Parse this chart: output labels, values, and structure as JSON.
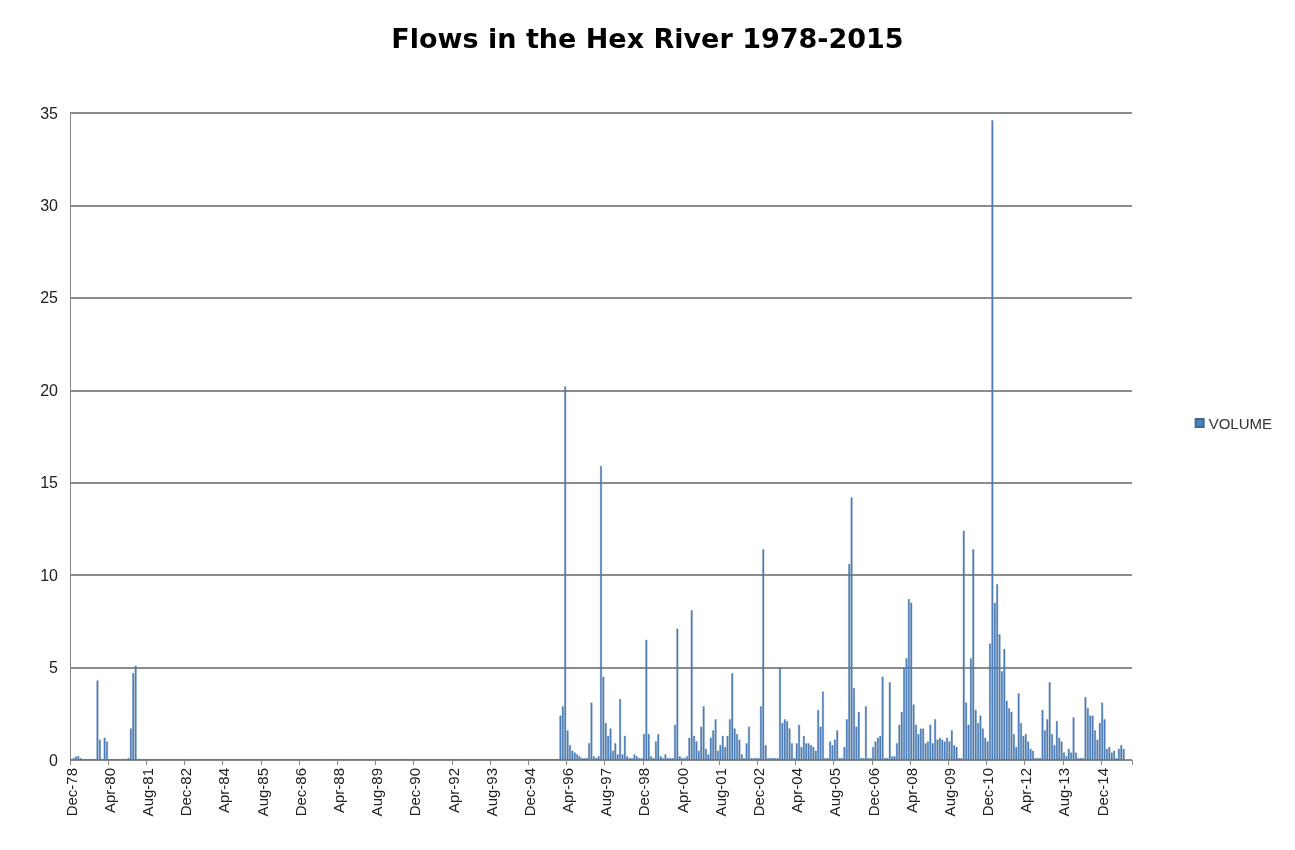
{
  "chart_data": {
    "type": "bar",
    "title": "Flows in the Hex River 1978-2015",
    "categories": [
      "Dec-78",
      null,
      null,
      null,
      null,
      null,
      null,
      null,
      null,
      null,
      null,
      null,
      null,
      null,
      null,
      null,
      "Apr-80",
      null,
      null,
      null,
      null,
      null,
      null,
      null,
      null,
      null,
      null,
      null,
      null,
      null,
      null,
      null,
      "Aug-81",
      null,
      null,
      null,
      null,
      null,
      null,
      null,
      null,
      null,
      null,
      null,
      null,
      null,
      null,
      null,
      "Dec-82",
      null,
      null,
      null,
      null,
      null,
      null,
      null,
      null,
      null,
      null,
      null,
      null,
      null,
      null,
      null,
      "Apr-84",
      null,
      null,
      null,
      null,
      null,
      null,
      null,
      null,
      null,
      null,
      null,
      null,
      null,
      null,
      null,
      "Aug-85",
      null,
      null,
      null,
      null,
      null,
      null,
      null,
      null,
      null,
      null,
      null,
      null,
      null,
      null,
      null,
      "Dec-86",
      null,
      null,
      null,
      null,
      null,
      null,
      null,
      null,
      null,
      null,
      null,
      null,
      null,
      null,
      null,
      "Apr-88",
      null,
      null,
      null,
      null,
      null,
      null,
      null,
      null,
      null,
      null,
      null,
      null,
      null,
      null,
      null,
      "Aug-89",
      null,
      null,
      null,
      null,
      null,
      null,
      null,
      null,
      null,
      null,
      null,
      null,
      null,
      null,
      null,
      "Dec-90",
      null,
      null,
      null,
      null,
      null,
      null,
      null,
      null,
      null,
      null,
      null,
      null,
      null,
      null,
      null,
      "Apr-92",
      null,
      null,
      null,
      null,
      null,
      null,
      null,
      null,
      null,
      null,
      null,
      null,
      null,
      null,
      null,
      "Aug-93",
      null,
      null,
      null,
      null,
      null,
      null,
      null,
      null,
      null,
      null,
      null,
      null,
      null,
      null,
      null,
      "Dec-94",
      null,
      null,
      null,
      null,
      null,
      null,
      null,
      null,
      null,
      null,
      null,
      null,
      null,
      null,
      null,
      "Apr-96",
      null,
      null,
      null,
      null,
      null,
      null,
      null,
      null,
      null,
      null,
      null,
      null,
      null,
      null,
      null,
      "Aug-97",
      null,
      null,
      null,
      null,
      null,
      null,
      null,
      null,
      null,
      null,
      null,
      null,
      null,
      null,
      null,
      "Dec-98",
      null,
      null,
      null,
      null,
      null,
      null,
      null,
      null,
      null,
      null,
      null,
      null,
      null,
      null,
      null,
      "Apr-00",
      null,
      null,
      null,
      null,
      null,
      null,
      null,
      null,
      null,
      null,
      null,
      null,
      null,
      null,
      null,
      "Aug-01",
      null,
      null,
      null,
      null,
      null,
      null,
      null,
      null,
      null,
      null,
      null,
      null,
      null,
      null,
      null,
      "Dec-02",
      null,
      null,
      null,
      null,
      null,
      null,
      null,
      null,
      null,
      null,
      null,
      null,
      null,
      null,
      null,
      "Apr-04",
      null,
      null,
      null,
      null,
      null,
      null,
      null,
      null,
      null,
      null,
      null,
      null,
      null,
      null,
      null,
      "Aug-05",
      null,
      null,
      null,
      null,
      null,
      null,
      null,
      null,
      null,
      null,
      null,
      null,
      null,
      null,
      null,
      "Dec-06",
      null,
      null,
      null,
      null,
      null,
      null,
      null,
      null,
      null,
      null,
      null,
      null,
      null,
      null,
      null,
      "Apr-08",
      null,
      null,
      null,
      null,
      null,
      null,
      null,
      null,
      null,
      null,
      null,
      null,
      null,
      null,
      null,
      "Aug-09",
      null,
      null,
      null,
      null,
      null,
      null,
      null,
      null,
      null,
      null,
      null,
      null,
      null,
      null,
      null,
      "Dec-10",
      null,
      null,
      null,
      null,
      null,
      null,
      null,
      null,
      null,
      null,
      null,
      null,
      null,
      null,
      null,
      "Apr-12",
      null,
      null,
      null,
      null,
      null,
      null,
      null,
      null,
      null,
      null,
      null,
      null,
      null,
      null,
      null,
      "Aug-13",
      null,
      null,
      null,
      null,
      null,
      null,
      null,
      null,
      null,
      null,
      null,
      null,
      null,
      null,
      null,
      "Dec-14",
      null,
      null,
      null,
      null,
      null,
      null,
      null,
      null,
      null,
      null,
      null,
      null
    ],
    "series": [
      {
        "name": "VOLUME",
        "color": "#4f81bd",
        "values": [
          0.05,
          0.1,
          0.2,
          0.2,
          0.1,
          0.05,
          0.05,
          0.05,
          0.05,
          0.05,
          0.05,
          4.3,
          1.1,
          0.05,
          1.2,
          1.0,
          0.05,
          0.05,
          0.05,
          0.05,
          0.05,
          0.05,
          0.05,
          0.05,
          0.1,
          1.7,
          4.7,
          5.1,
          0.05,
          0.05,
          0.05,
          0.05,
          0.05,
          0.05,
          0.05,
          0.05,
          0.05,
          0.05,
          0.05,
          0.05,
          0.05,
          0.05,
          0.05,
          0.05,
          0.05,
          0.05,
          0.05,
          0.05,
          0.05,
          0.05,
          0.05,
          0.05,
          0.05,
          0.05,
          0.05,
          0.05,
          0.05,
          0.05,
          0.05,
          0.05,
          0.05,
          0.05,
          0.05,
          0.05,
          0.05,
          0.05,
          0.05,
          0.05,
          0.05,
          0.05,
          0.05,
          0.05,
          0.05,
          0.05,
          0.05,
          0.05,
          0.05,
          0.05,
          0.05,
          0.05,
          0.05,
          0.05,
          0.05,
          0.05,
          0.05,
          0.05,
          0.05,
          0.05,
          0.05,
          0.05,
          0.05,
          0.05,
          0.05,
          0.05,
          0.05,
          0.05,
          0.05,
          0.05,
          0.05,
          0.05,
          0.05,
          0.05,
          0.05,
          0.05,
          0.05,
          0.05,
          0.05,
          0.05,
          0.05,
          0.05,
          0.05,
          0.05,
          0.05,
          0.05,
          0.05,
          0.05,
          0.05,
          0.05,
          0.05,
          0.05,
          0.05,
          0.05,
          0.05,
          0.05,
          0.05,
          0.05,
          0.05,
          0.05,
          0.05,
          0.05,
          0.05,
          0.05,
          0.05,
          0.05,
          0.05,
          0.05,
          0.05,
          0.05,
          0.05,
          0.05,
          0.05,
          0.05,
          0.05,
          0.05,
          0.05,
          0.05,
          0.05,
          0.05,
          0.05,
          0.05,
          0.05,
          0.05,
          0.05,
          0.05,
          0.05,
          0.05,
          0.05,
          0.05,
          0.05,
          0.05,
          0.05,
          0.05,
          0.05,
          0.05,
          0.05,
          0.05,
          0.05,
          0.05,
          0.05,
          0.05,
          0.05,
          0.05,
          0.05,
          0.05,
          0.05,
          0.05,
          0.05,
          0.05,
          0.05,
          0.05,
          0.05,
          0.05,
          0.05,
          0.05,
          0.05,
          0.05,
          0.05,
          0.05,
          0.05,
          0.05,
          0.05,
          0.05,
          0.05,
          0.05,
          0.05,
          0.05,
          0.05,
          0.05,
          0.05,
          0.05,
          0.05,
          0.05,
          0.05,
          0.05,
          0.05,
          2.4,
          2.9,
          20.2,
          1.6,
          0.8,
          0.5,
          0.4,
          0.3,
          0.2,
          0.1,
          0.1,
          0.1,
          0.9,
          3.1,
          0.2,
          0.1,
          0.2,
          15.9,
          4.5,
          2.0,
          1.3,
          1.7,
          0.5,
          0.9,
          0.3,
          3.3,
          0.3,
          1.3,
          0.2,
          0.1,
          0.1,
          0.3,
          0.2,
          0.1,
          0.1,
          1.4,
          6.5,
          1.4,
          0.2,
          0.1,
          1.0,
          1.4,
          0.2,
          0.1,
          0.3,
          0.1,
          0.1,
          0.1,
          1.9,
          7.1,
          0.2,
          0.1,
          0.1,
          0.2,
          1.2,
          8.1,
          1.3,
          1.0,
          0.5,
          1.8,
          2.9,
          0.6,
          0.3,
          1.2,
          1.6,
          2.2,
          0.5,
          0.8,
          1.3,
          0.7,
          1.3,
          2.2,
          4.7,
          1.7,
          1.4,
          1.1,
          0.3,
          0.1,
          0.9,
          1.8,
          0.1,
          0.1,
          0.1,
          0.1,
          2.9,
          11.4,
          0.8,
          0.1,
          0.1,
          0.1,
          0.1,
          0.1,
          5.0,
          2.0,
          2.2,
          2.1,
          1.7,
          0.9,
          0.1,
          0.9,
          1.9,
          0.7,
          1.3,
          0.9,
          0.9,
          0.8,
          0.7,
          0.5,
          2.7,
          1.8,
          3.7,
          0.1,
          0.1,
          1.0,
          0.8,
          1.1,
          1.6,
          0.1,
          0.1,
          0.7,
          2.2,
          10.6,
          14.2,
          3.9,
          1.8,
          2.6,
          0.1,
          0.1,
          2.9,
          0.1,
          0.1,
          0.7,
          1.0,
          1.2,
          1.3,
          4.5,
          0.1,
          0.1,
          4.2,
          0.2,
          0.2,
          0.9,
          1.9,
          2.6,
          5.0,
          5.5,
          8.7,
          8.5,
          3.0,
          1.9,
          1.4,
          1.7,
          1.7,
          0.9,
          1.0,
          1.9,
          0.9,
          2.2,
          1.1,
          1.2,
          1.1,
          1.0,
          1.2,
          1.0,
          1.6,
          0.8,
          0.7,
          0.1,
          0.1,
          12.4,
          3.1,
          1.9,
          5.5,
          11.4,
          2.7,
          2.0,
          2.4,
          1.7,
          1.2,
          1.0,
          6.3,
          34.6,
          8.5,
          9.5,
          6.8,
          4.8,
          6.0,
          3.2,
          2.8,
          2.6,
          1.4,
          0.7,
          3.6,
          2.0,
          1.3,
          1.4,
          1.0,
          0.6,
          0.5,
          0.1,
          0.1,
          0.1,
          2.7,
          1.6,
          2.2,
          4.2,
          1.4,
          0.8,
          2.1,
          1.2,
          1.0,
          0.4,
          0.2,
          0.6,
          0.4,
          2.3,
          0.4,
          0.1,
          0.1,
          0.1,
          3.4,
          2.8,
          2.4,
          2.4,
          1.6,
          1.1,
          2.0,
          3.1,
          2.2,
          0.6,
          0.7,
          0.4,
          0.5,
          0.1,
          0.6,
          0.8,
          0.6,
          null,
          null,
          null
        ]
      }
    ],
    "ylim": [
      0,
      35
    ],
    "yticks": [
      0,
      5,
      10,
      15,
      20,
      25,
      30,
      35
    ],
    "grid": "y",
    "legend": "right"
  }
}
